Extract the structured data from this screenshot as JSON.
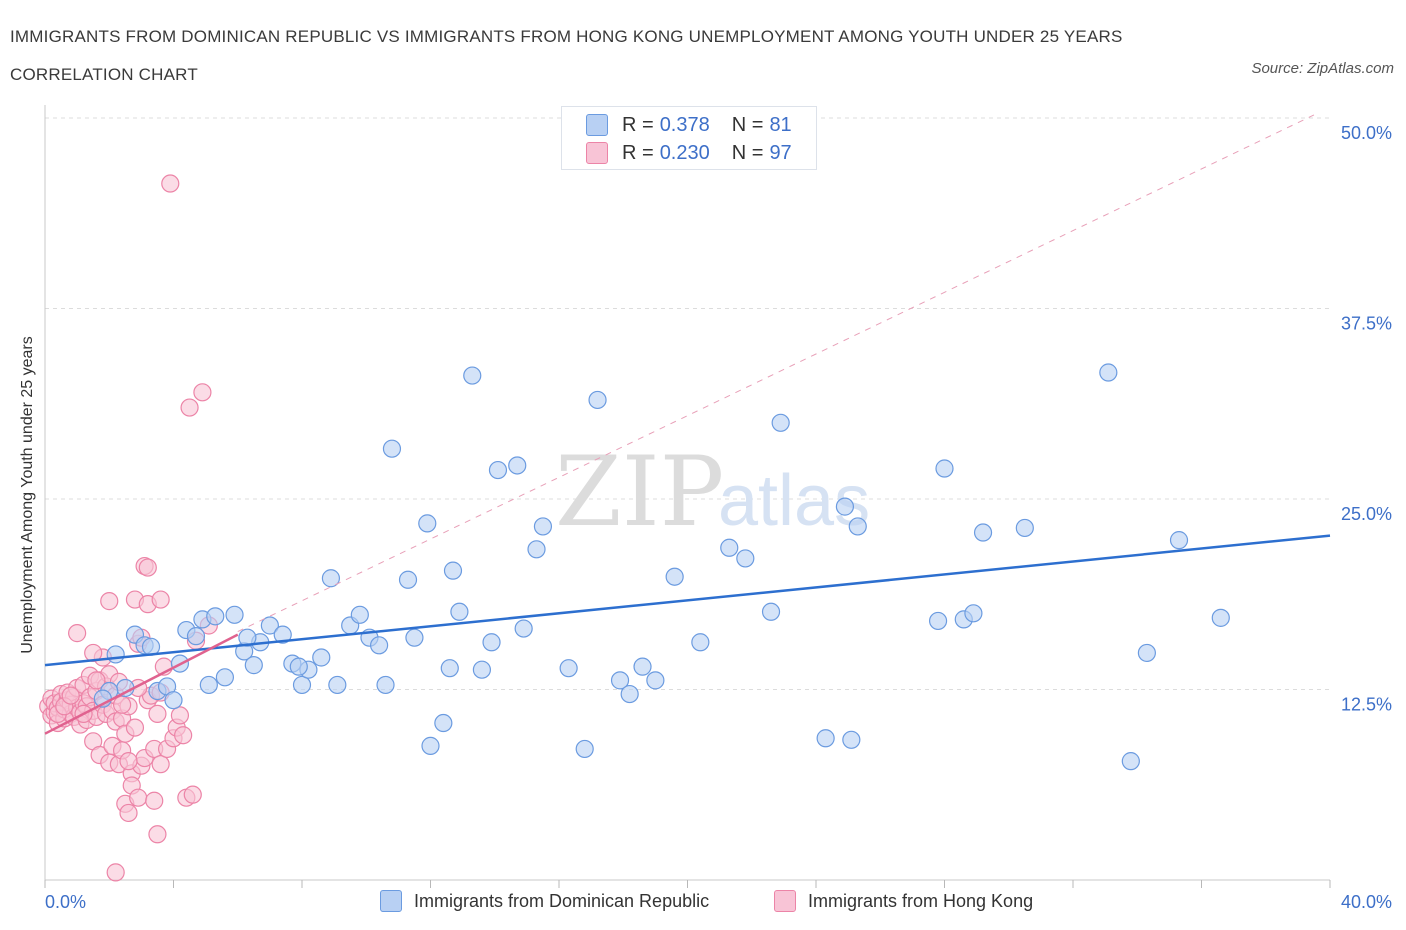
{
  "header": {
    "title": "IMMIGRANTS FROM DOMINICAN REPUBLIC VS IMMIGRANTS FROM HONG KONG UNEMPLOYMENT AMONG YOUTH UNDER 25 YEARS CORRELATION CHART",
    "source": "Source: ZipAtlas.com"
  },
  "legend": {
    "r_label": "R =",
    "n_label": "N =",
    "rows": [
      {
        "r": "0.378",
        "n": "81"
      },
      {
        "r": "0.230",
        "n": "97"
      }
    ]
  },
  "watermark": {
    "zip": "ZIP",
    "atlas": "atlas"
  },
  "colors": {
    "blue_fill": "#b8d0f3",
    "blue_stroke": "#6b9be0",
    "blue_line": "#2d6fcf",
    "pink_fill": "#f8c4d6",
    "pink_stroke": "#ec84a7",
    "pink_line": "#e0628f",
    "axis_text": "#3d6fc8",
    "grid": "#dcdcdc"
  },
  "chart_data": {
    "type": "scatter",
    "title": "IMMIGRANTS FROM DOMINICAN REPUBLIC VS IMMIGRANTS FROM HONG KONG UNEMPLOYMENT AMONG YOUTH UNDER 25 YEARS CORRELATION CHART",
    "xlabel": "",
    "ylabel": "Unemployment Among Youth under 25 years",
    "xlim": [
      0,
      40
    ],
    "ylim": [
      0,
      50
    ],
    "x_tick_labels": [
      {
        "value": 0,
        "label": "0.0%"
      },
      {
        "value": 40,
        "label": "40.0%"
      }
    ],
    "y_tick_labels": [
      {
        "value": 12.5,
        "label": "12.5%"
      },
      {
        "value": 25,
        "label": "25.0%"
      },
      {
        "value": 37.5,
        "label": "37.5%"
      },
      {
        "value": 50,
        "label": "50.0%"
      }
    ],
    "grid": true,
    "legend_position": "top-center",
    "series": [
      {
        "name": "Immigrants from Dominican Republic",
        "r": 0.378,
        "n": 81,
        "trend": {
          "x": [
            0,
            40
          ],
          "y": [
            14.1,
            22.6
          ]
        },
        "points": [
          [
            2.2,
            14.8
          ],
          [
            2.8,
            16.1
          ],
          [
            3.1,
            15.4
          ],
          [
            2.5,
            12.6
          ],
          [
            3.5,
            12.4
          ],
          [
            3.8,
            12.7
          ],
          [
            4.0,
            11.8
          ],
          [
            4.2,
            14.2
          ],
          [
            4.4,
            16.4
          ],
          [
            4.7,
            16.0
          ],
          [
            4.9,
            17.1
          ],
          [
            5.1,
            12.8
          ],
          [
            5.3,
            17.3
          ],
          [
            5.6,
            13.3
          ],
          [
            5.9,
            17.4
          ],
          [
            6.2,
            15.0
          ],
          [
            6.5,
            14.1
          ],
          [
            6.7,
            15.6
          ],
          [
            7.0,
            16.7
          ],
          [
            7.4,
            16.1
          ],
          [
            7.7,
            14.2
          ],
          [
            8.0,
            12.8
          ],
          [
            8.2,
            13.8
          ],
          [
            8.6,
            14.6
          ],
          [
            8.9,
            19.8
          ],
          [
            9.1,
            12.8
          ],
          [
            9.5,
            16.7
          ],
          [
            9.8,
            17.4
          ],
          [
            10.1,
            15.9
          ],
          [
            10.4,
            15.4
          ],
          [
            10.6,
            12.8
          ],
          [
            10.8,
            28.3
          ],
          [
            11.3,
            19.7
          ],
          [
            11.5,
            15.9
          ],
          [
            11.9,
            23.4
          ],
          [
            12.0,
            8.8
          ],
          [
            12.4,
            10.3
          ],
          [
            12.6,
            13.9
          ],
          [
            12.9,
            17.6
          ],
          [
            13.3,
            33.1
          ],
          [
            13.6,
            13.8
          ],
          [
            13.9,
            15.6
          ],
          [
            14.1,
            26.9
          ],
          [
            14.7,
            27.2
          ],
          [
            14.9,
            16.5
          ],
          [
            15.3,
            21.7
          ],
          [
            15.5,
            23.2
          ],
          [
            16.3,
            13.9
          ],
          [
            16.8,
            8.6
          ],
          [
            17.2,
            31.5
          ],
          [
            17.9,
            13.1
          ],
          [
            18.6,
            14.0
          ],
          [
            19.0,
            13.1
          ],
          [
            19.6,
            19.9
          ],
          [
            20.4,
            15.6
          ],
          [
            21.3,
            21.8
          ],
          [
            21.8,
            21.1
          ],
          [
            22.6,
            17.6
          ],
          [
            22.9,
            30.0
          ],
          [
            24.3,
            9.3
          ],
          [
            24.9,
            24.5
          ],
          [
            25.3,
            23.2
          ],
          [
            25.1,
            9.2
          ],
          [
            27.8,
            17.0
          ],
          [
            28.0,
            27.0
          ],
          [
            28.6,
            17.1
          ],
          [
            28.9,
            17.5
          ],
          [
            29.2,
            22.8
          ],
          [
            30.5,
            23.1
          ],
          [
            33.1,
            33.3
          ],
          [
            33.8,
            7.8
          ],
          [
            34.3,
            14.9
          ],
          [
            35.3,
            22.3
          ],
          [
            36.6,
            17.2
          ],
          [
            3.3,
            15.3
          ],
          [
            2.0,
            12.4
          ],
          [
            1.8,
            11.9
          ],
          [
            6.3,
            15.9
          ],
          [
            7.9,
            14.0
          ],
          [
            18.2,
            12.2
          ],
          [
            12.7,
            20.3
          ]
        ]
      },
      {
        "name": "Immigrants from Hong Kong",
        "r": 0.23,
        "n": 97,
        "trend": {
          "x": [
            0,
            6
          ],
          "y": [
            9.6,
            16.1
          ]
        },
        "points": [
          [
            0.1,
            11.4
          ],
          [
            0.2,
            10.8
          ],
          [
            0.2,
            11.9
          ],
          [
            0.3,
            11.0
          ],
          [
            0.3,
            11.6
          ],
          [
            0.4,
            10.3
          ],
          [
            0.4,
            11.3
          ],
          [
            0.5,
            12.2
          ],
          [
            0.5,
            11.7
          ],
          [
            0.6,
            10.6
          ],
          [
            0.6,
            11.2
          ],
          [
            0.7,
            11.8
          ],
          [
            0.7,
            12.3
          ],
          [
            0.8,
            10.9
          ],
          [
            0.8,
            11.5
          ],
          [
            0.9,
            12.0
          ],
          [
            0.9,
            10.7
          ],
          [
            1.0,
            11.3
          ],
          [
            1.0,
            12.6
          ],
          [
            1.1,
            11.0
          ],
          [
            1.1,
            10.2
          ],
          [
            1.2,
            11.6
          ],
          [
            1.2,
            12.8
          ],
          [
            1.3,
            11.4
          ],
          [
            1.3,
            10.5
          ],
          [
            1.4,
            12.0
          ],
          [
            1.4,
            13.4
          ],
          [
            1.5,
            11.1
          ],
          [
            1.5,
            9.1
          ],
          [
            1.6,
            12.4
          ],
          [
            1.6,
            10.7
          ],
          [
            1.7,
            13.1
          ],
          [
            1.7,
            8.2
          ],
          [
            1.8,
            11.5
          ],
          [
            1.8,
            14.6
          ],
          [
            1.9,
            10.9
          ],
          [
            1.9,
            12.7
          ],
          [
            2.0,
            7.7
          ],
          [
            2.0,
            13.5
          ],
          [
            2.1,
            11.1
          ],
          [
            2.1,
            8.8
          ],
          [
            2.2,
            12.1
          ],
          [
            2.2,
            10.4
          ],
          [
            2.3,
            7.6
          ],
          [
            2.3,
            13.0
          ],
          [
            2.4,
            8.5
          ],
          [
            2.4,
            10.6
          ],
          [
            2.5,
            5.0
          ],
          [
            2.5,
            9.6
          ],
          [
            2.6,
            4.4
          ],
          [
            2.6,
            11.4
          ],
          [
            2.7,
            7.0
          ],
          [
            2.7,
            6.2
          ],
          [
            2.8,
            18.4
          ],
          [
            2.8,
            10.0
          ],
          [
            2.9,
            15.5
          ],
          [
            2.9,
            5.4
          ],
          [
            3.0,
            7.5
          ],
          [
            3.0,
            15.9
          ],
          [
            3.1,
            20.6
          ],
          [
            3.1,
            8.0
          ],
          [
            3.2,
            18.1
          ],
          [
            3.2,
            11.8
          ],
          [
            3.3,
            12.1
          ],
          [
            3.4,
            8.6
          ],
          [
            3.4,
            5.2
          ],
          [
            3.5,
            10.9
          ],
          [
            3.5,
            3.0
          ],
          [
            3.6,
            18.4
          ],
          [
            3.6,
            7.6
          ],
          [
            3.7,
            14.0
          ],
          [
            3.8,
            8.6
          ],
          [
            3.9,
            45.7
          ],
          [
            4.0,
            9.3
          ],
          [
            4.1,
            10.0
          ],
          [
            4.2,
            10.8
          ],
          [
            4.3,
            9.5
          ],
          [
            4.4,
            5.4
          ],
          [
            4.5,
            31.0
          ],
          [
            4.6,
            5.6
          ],
          [
            4.7,
            15.7
          ],
          [
            4.9,
            32.0
          ],
          [
            5.1,
            16.7
          ],
          [
            1.0,
            16.2
          ],
          [
            1.5,
            14.9
          ],
          [
            2.0,
            18.3
          ],
          [
            0.4,
            10.9
          ],
          [
            0.6,
            11.4
          ],
          [
            0.8,
            12.1
          ],
          [
            1.2,
            10.9
          ],
          [
            1.6,
            13.1
          ],
          [
            2.4,
            11.5
          ],
          [
            2.2,
            0.5
          ],
          [
            3.2,
            20.5
          ],
          [
            2.9,
            12.6
          ],
          [
            3.6,
            12.3
          ],
          [
            2.6,
            7.8
          ]
        ]
      }
    ]
  }
}
